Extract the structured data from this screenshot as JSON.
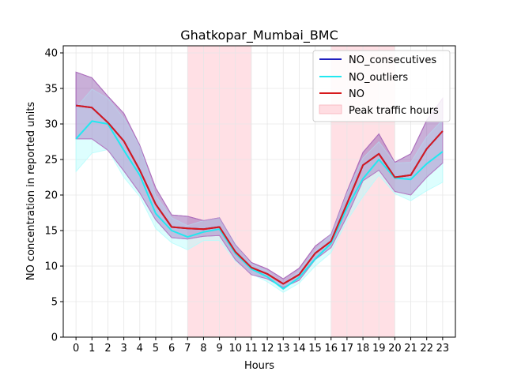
{
  "chart_data": {
    "type": "line",
    "title": "Ghatkopar_Mumbai_BMC",
    "xlabel": "Hours",
    "ylabel": "NO concentration in reported units",
    "x": [
      0,
      1,
      2,
      3,
      4,
      5,
      6,
      7,
      8,
      9,
      10,
      11,
      12,
      13,
      14,
      15,
      16,
      17,
      18,
      19,
      20,
      21,
      22,
      23
    ],
    "xlim": [
      -0.8,
      23.8
    ],
    "ylim": [
      0,
      41
    ],
    "yticks": [
      0,
      5,
      10,
      15,
      20,
      25,
      30,
      35,
      40
    ],
    "grid": true,
    "legend_position": "top-right",
    "peak_hours": [
      [
        7,
        11
      ],
      [
        16,
        20
      ]
    ],
    "peak_label": "Peak traffic hours",
    "series": [
      {
        "name": "NO_consecutives",
        "color": "#1f1fbf",
        "band_color": "#4b3f9a",
        "values": [
          32.6,
          32.3,
          30.2,
          27.6,
          23.5,
          18.7,
          15.5,
          15.3,
          15.2,
          15.5,
          12.0,
          9.8,
          8.9,
          7.5,
          8.8,
          11.8,
          13.5,
          18.8,
          24.2,
          25.8,
          22.5,
          22.8,
          26.5,
          29.0
        ],
        "lower": [
          27.9,
          27.9,
          26.3,
          23.4,
          20.3,
          16.5,
          14.0,
          13.8,
          14.2,
          14.3,
          10.9,
          8.8,
          8.2,
          7.0,
          8.0,
          10.9,
          12.6,
          17.0,
          22.0,
          23.5,
          20.5,
          20.0,
          22.5,
          24.5
        ],
        "upper": [
          37.3,
          36.5,
          33.9,
          31.5,
          27.0,
          21.0,
          17.2,
          17.0,
          16.4,
          16.8,
          13.0,
          10.5,
          9.6,
          8.2,
          9.7,
          12.8,
          14.5,
          20.5,
          26.0,
          28.6,
          24.6,
          25.8,
          30.5,
          33.6
        ]
      },
      {
        "name": "NO_outliers",
        "color": "#22e8f0",
        "band_color": "#b4fcfc",
        "values": [
          27.9,
          30.4,
          30.0,
          26.3,
          22.8,
          17.4,
          15.0,
          14.1,
          14.8,
          15.2,
          11.8,
          9.6,
          8.5,
          6.8,
          8.4,
          11.0,
          13.2,
          18.2,
          22.3,
          25.0,
          22.4,
          22.2,
          24.4,
          26.1
        ],
        "lower": [
          23.3,
          25.9,
          26.4,
          22.5,
          19.8,
          15.3,
          13.3,
          12.3,
          13.6,
          13.6,
          10.7,
          8.9,
          7.8,
          6.3,
          7.6,
          10.0,
          11.9,
          16.4,
          19.8,
          22.8,
          20.2,
          19.2,
          20.6,
          21.8
        ],
        "upper": [
          32.3,
          34.9,
          33.6,
          30.8,
          26.9,
          19.9,
          16.8,
          15.7,
          16.4,
          16.8,
          13.1,
          10.3,
          9.3,
          7.4,
          9.3,
          12.2,
          14.6,
          20.3,
          25.2,
          27.5,
          24.5,
          24.6,
          28.2,
          30.6
        ]
      },
      {
        "name": "NO",
        "color": "#d7191c",
        "band_color": "#c06fc0",
        "values": [
          32.6,
          32.3,
          30.2,
          27.6,
          23.5,
          18.7,
          15.5,
          15.3,
          15.2,
          15.5,
          12.0,
          9.8,
          8.9,
          7.5,
          8.8,
          11.8,
          13.5,
          18.8,
          24.2,
          25.8,
          22.5,
          22.8,
          26.5,
          29.0
        ],
        "lower": [
          27.9,
          27.9,
          26.3,
          23.4,
          20.3,
          16.5,
          14.0,
          13.8,
          14.2,
          14.3,
          10.9,
          8.8,
          8.2,
          7.0,
          8.0,
          10.9,
          12.6,
          17.0,
          22.0,
          23.5,
          20.5,
          20.0,
          22.5,
          24.5
        ],
        "upper": [
          37.3,
          36.5,
          33.9,
          31.5,
          27.0,
          21.0,
          17.2,
          17.0,
          16.4,
          16.8,
          13.0,
          10.5,
          9.6,
          8.2,
          9.7,
          12.8,
          14.5,
          20.5,
          26.0,
          28.6,
          24.6,
          25.8,
          30.5,
          33.6
        ]
      }
    ]
  }
}
